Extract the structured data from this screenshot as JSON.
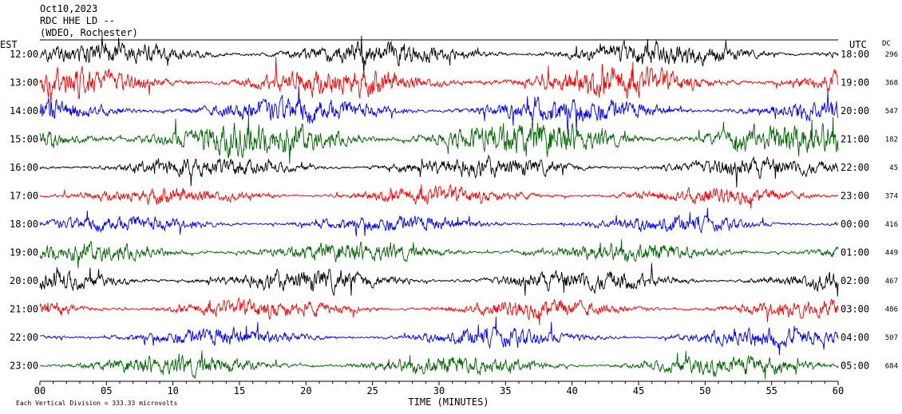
{
  "header": {
    "date": "Oct10,2023",
    "channel": "RDC HHE LD --",
    "source": "(WDEO, Rochester)"
  },
  "left_axis_label": "EST",
  "right_axis_label": "UTC",
  "dc_label": "DC",
  "x_axis_label": "TIME (MINUTES)",
  "footer": "Each Vertical Division =  333.33 microvolts",
  "colors": {
    "black": "#000000",
    "red": "#ff0000",
    "blue": "#0000ff",
    "green": "#006600"
  },
  "chart_data": {
    "type": "line",
    "title": "Oct10,2023 RDC HHE LD -- (WDEO, Rochester)",
    "xlabel": "TIME (MINUTES)",
    "ylabel": "",
    "xlim": [
      0,
      60
    ],
    "x_ticks": [
      "00",
      "05",
      "10",
      "15",
      "20",
      "25",
      "30",
      "35",
      "40",
      "45",
      "50",
      "55",
      "60"
    ],
    "grid": false,
    "traces": [
      {
        "est": "12:00",
        "utc": "18:00",
        "dc": "296",
        "color": "black"
      },
      {
        "est": "13:00",
        "utc": "19:00",
        "dc": "368",
        "color": "red"
      },
      {
        "est": "14:00",
        "utc": "20:00",
        "dc": "547",
        "color": "blue"
      },
      {
        "est": "15:00",
        "utc": "21:00",
        "dc": "182",
        "color": "green"
      },
      {
        "est": "16:00",
        "utc": "22:00",
        "dc": "45",
        "color": "black"
      },
      {
        "est": "17:00",
        "utc": "23:00",
        "dc": "374",
        "color": "red"
      },
      {
        "est": "18:00",
        "utc": "00:00",
        "dc": "416",
        "color": "blue"
      },
      {
        "est": "19:00",
        "utc": "01:00",
        "dc": "449",
        "color": "green"
      },
      {
        "est": "20:00",
        "utc": "02:00",
        "dc": "467",
        "color": "black"
      },
      {
        "est": "21:00",
        "utc": "03:00",
        "dc": "486",
        "color": "red"
      },
      {
        "est": "22:00",
        "utc": "04:00",
        "dc": "507",
        "color": "blue"
      },
      {
        "est": "23:00",
        "utc": "05:00",
        "dc": "684",
        "color": "green"
      }
    ]
  }
}
